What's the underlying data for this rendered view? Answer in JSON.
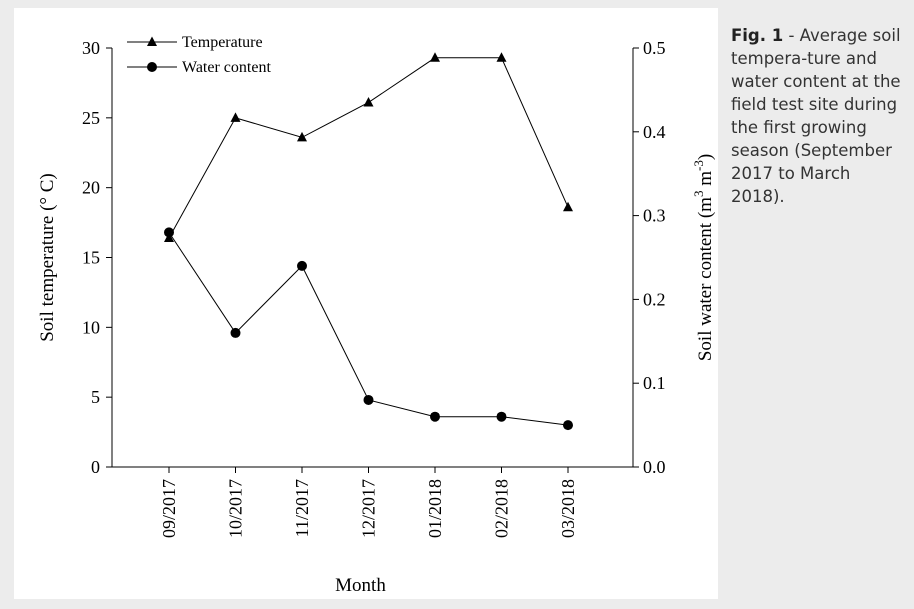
{
  "caption": {
    "label": "Fig. 1",
    "text": " - Average soil tempera-ture and water content at the field test site during the first growing season (September 2017 to March 2018)."
  },
  "chart_data": {
    "type": "line",
    "categories": [
      "09/2017",
      "10/2017",
      "11/2017",
      "12/2017",
      "01/2018",
      "02/2018",
      "03/2018"
    ],
    "xlabel": "Month",
    "ylabel_left": "Soil temperature (° C)",
    "ylabel_right": "Soil water content (m3 m-3)",
    "ylim_left": [
      0,
      30
    ],
    "ylim_right": [
      0.0,
      0.5
    ],
    "yticks_left": [
      "0",
      "5",
      "10",
      "15",
      "20",
      "25",
      "30"
    ],
    "yticks_right": [
      "0.0",
      "0.1",
      "0.2",
      "0.3",
      "0.4",
      "0.5"
    ],
    "grid": false,
    "legend_position": "top-left",
    "series": [
      {
        "name": "Temperature",
        "axis": "left",
        "marker": "triangle",
        "values": [
          16.4,
          25.0,
          23.6,
          26.1,
          29.3,
          29.3,
          18.6
        ]
      },
      {
        "name": "Water content",
        "axis": "right",
        "marker": "circle",
        "values": [
          0.28,
          0.16,
          0.24,
          0.08,
          0.06,
          0.06,
          0.05
        ]
      }
    ]
  }
}
